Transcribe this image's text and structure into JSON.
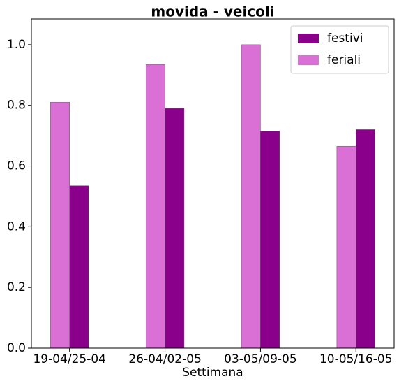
{
  "chart_data": {
    "type": "bar",
    "title": "movida - veicoli",
    "xlabel": "Settimana",
    "categories": [
      "19-04/25-04",
      "26-04/02-05",
      "03-05/09-05",
      "10-05/16-05"
    ],
    "series": [
      {
        "name": "festivi",
        "color": "#8b008b",
        "values": [
          0.535,
          0.79,
          0.715,
          0.72
        ]
      },
      {
        "name": "feriali",
        "color": "#da70d6",
        "values": [
          0.81,
          0.935,
          1.0,
          0.665
        ]
      }
    ],
    "ylim": [
      0,
      1.085
    ],
    "yticks": [
      {
        "value": 0,
        "label": "0.0"
      },
      0.2,
      0.4,
      0.6,
      0.8,
      {
        "value": 1,
        "label": "1.0"
      }
    ],
    "legend": "upper right"
  }
}
